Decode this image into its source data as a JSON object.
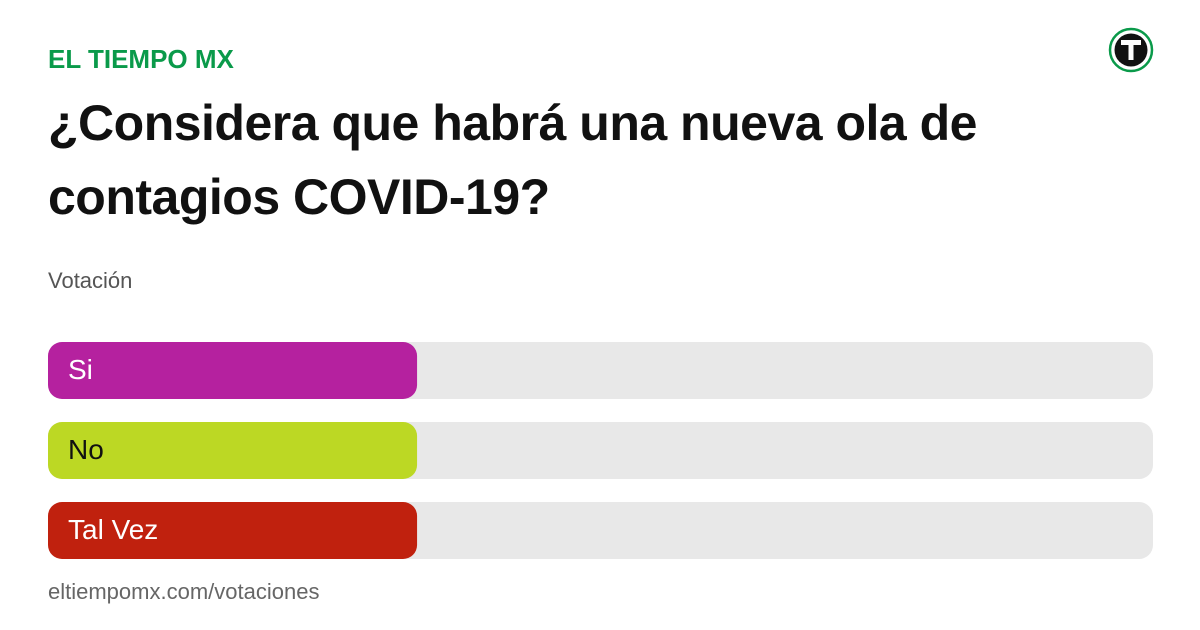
{
  "chart_data": {
    "type": "bar",
    "brand": "EL TIEMPO MX",
    "title": "¿Considera que habrá una nueva ola de contagios COVID-19?",
    "subtitle": "Votación",
    "footer": "eltiempomx.com/votaciones",
    "categories": [
      "Si",
      "No",
      "Tal Vez"
    ],
    "values": [
      33.4,
      33.4,
      33.4
    ],
    "colors": [
      "#b5219f",
      "#bcd824",
      "#c0210e"
    ],
    "track_color": "#e8e8e8",
    "xlim": [
      0,
      100
    ]
  }
}
